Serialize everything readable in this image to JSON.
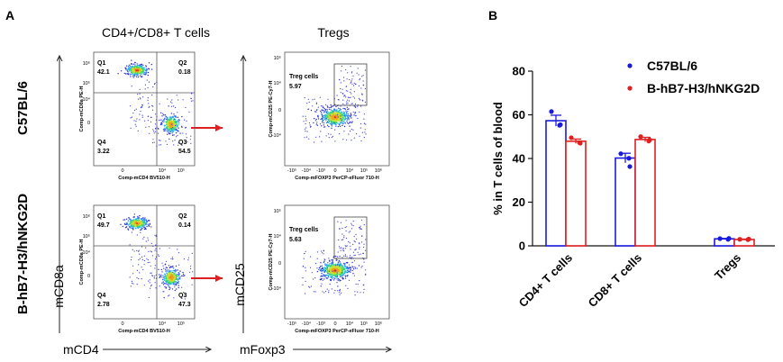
{
  "panel_a": {
    "label": "A",
    "col1_title": "CD4+/CD8+ T cells",
    "col2_title": "Tregs",
    "row1_label": "C57BL/6",
    "row2_label": "B-hB7-H3/hNKG2D",
    "y_axis_label_col1": "mCD8a",
    "x_axis_label_col1": "mCD4",
    "y_axis_label_col2": "mCD25",
    "x_axis_label_col2": "mFoxp3",
    "flow_plots": [
      {
        "name": "c57-quadrant",
        "quadrants": [
          {
            "label": "Q1",
            "value": "42.1"
          },
          {
            "label": "Q2",
            "value": "0.18"
          },
          {
            "label": "Q3",
            "value": "54.5"
          },
          {
            "label": "Q4",
            "value": "3.22"
          }
        ],
        "xaxis": "Comp-mCD4 BV510-H",
        "yaxis": "Comp-mCD8a PE-H"
      },
      {
        "name": "c57-treg",
        "gate_label": "Treg cells",
        "gate_value": "5.97",
        "xaxis": "Comp-mFOXP3 PerCP-eFluor 710-H",
        "yaxis": "Comp-mCD25 PE-Cy7-H"
      },
      {
        "name": "hb7-quadrant",
        "quadrants": [
          {
            "label": "Q1",
            "value": "49.7"
          },
          {
            "label": "Q2",
            "value": "0.14"
          },
          {
            "label": "Q3",
            "value": "47.3"
          },
          {
            "label": "Q4",
            "value": "2.78"
          }
        ],
        "xaxis": "Comp-mCD4 BV510-H",
        "yaxis": "Comp-mCD8a PE-H"
      },
      {
        "name": "hb7-treg",
        "gate_label": "Treg cells",
        "gate_value": "5.63",
        "xaxis": "Comp-mFOXP3 PerCP-eFluor 710-H",
        "yaxis": "Comp-mCD25 PE-Cy7-H"
      }
    ],
    "tick_labels": {
      "zero": "0",
      "e4": "10⁴",
      "e5": "10⁵",
      "e6": "10⁶",
      "neg_e3": "-10³",
      "neg_e4": "-10⁴",
      "neg_e5": "-10⁵"
    }
  },
  "panel_b": {
    "label": "B",
    "colors": {
      "C57BL/6": "#1a1adf",
      "B-hB7-H3/hNKG2D": "#e02020"
    }
  },
  "chart_data": {
    "type": "bar",
    "title": "",
    "ylabel": "% in T cells of blood",
    "xlabel": "",
    "ylim": [
      0,
      80
    ],
    "yticks": [
      0,
      20,
      40,
      60,
      80
    ],
    "categories": [
      "CD4+ T cells",
      "CD8+ T cells",
      "Tregs"
    ],
    "legend_position": "top-right",
    "series": [
      {
        "name": "C57BL/6",
        "color": "#1a1adf",
        "values": [
          57.3,
          40.2,
          3.2
        ],
        "errors": [
          2.5,
          2.2,
          0.2
        ],
        "points": [
          [
            61.5,
            55.2,
            55.5
          ],
          [
            42.2,
            40.1,
            36.3
          ],
          [
            3.3,
            3.0,
            3.4
          ]
        ]
      },
      {
        "name": "B-hB7-H3/hNKG2D",
        "color": "#e02020",
        "values": [
          47.9,
          48.7,
          2.9
        ],
        "errors": [
          1.0,
          1.0,
          0.2
        ],
        "points": [
          [
            49.5,
            47.3,
            47.0
          ],
          [
            50.0,
            48.0,
            48.5
          ],
          [
            3.0,
            2.8,
            3.1
          ]
        ]
      }
    ]
  }
}
